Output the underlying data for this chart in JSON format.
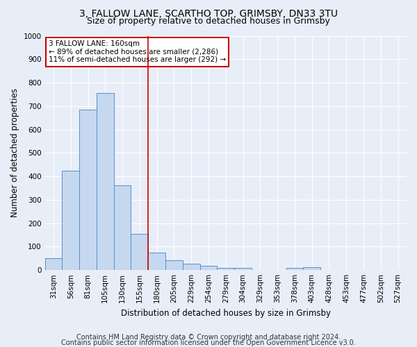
{
  "title1": "3, FALLOW LANE, SCARTHO TOP, GRIMSBY, DN33 3TU",
  "title2": "Size of property relative to detached houses in Grimsby",
  "xlabel": "Distribution of detached houses by size in Grimsby",
  "ylabel": "Number of detached properties",
  "categories": [
    "31sqm",
    "56sqm",
    "81sqm",
    "105sqm",
    "130sqm",
    "155sqm",
    "180sqm",
    "205sqm",
    "229sqm",
    "254sqm",
    "279sqm",
    "304sqm",
    "329sqm",
    "353sqm",
    "378sqm",
    "403sqm",
    "428sqm",
    "453sqm",
    "477sqm",
    "502sqm",
    "527sqm"
  ],
  "values": [
    52,
    424,
    686,
    757,
    362,
    155,
    75,
    41,
    28,
    18,
    10,
    8,
    0,
    0,
    8,
    11,
    0,
    0,
    0,
    0,
    0
  ],
  "bar_color": "#c5d8f0",
  "bar_edge_color": "#5b8ec4",
  "vline_x": 5.5,
  "vline_color": "#cc0000",
  "annotation_text": "3 FALLOW LANE: 160sqm\n← 89% of detached houses are smaller (2,286)\n11% of semi-detached houses are larger (292) →",
  "annotation_box_color": "#ffffff",
  "annotation_box_edge": "#cc0000",
  "ylim": [
    0,
    1000
  ],
  "yticks": [
    0,
    100,
    200,
    300,
    400,
    500,
    600,
    700,
    800,
    900,
    1000
  ],
  "footer1": "Contains HM Land Registry data © Crown copyright and database right 2024.",
  "footer2": "Contains public sector information licensed under the Open Government Licence v3.0.",
  "background_color": "#e8eef8",
  "grid_color": "#ffffff",
  "title1_fontsize": 10,
  "title2_fontsize": 9,
  "xlabel_fontsize": 8.5,
  "ylabel_fontsize": 8.5,
  "tick_fontsize": 7.5,
  "footer_fontsize": 7,
  "annotation_fontsize": 7.5
}
